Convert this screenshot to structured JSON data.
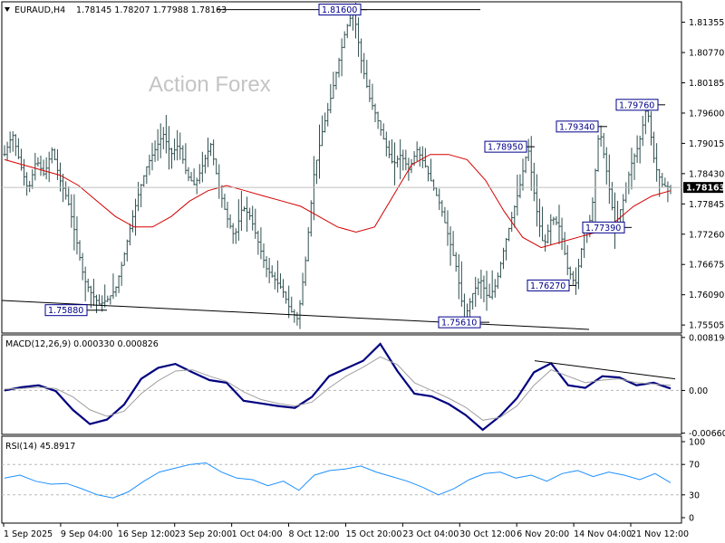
{
  "header": {
    "symbol": "EURAUD,H4",
    "ohlc": "1.78145 1.78207 1.77988 1.78163",
    "watermark": "Action Forex"
  },
  "colors": {
    "bar": "#2f4f4f",
    "ma": "#d40000",
    "macd": "#000080",
    "signal": "#a0a0a0",
    "rsi": "#1e90ff",
    "last_tag": "#000000",
    "label_border": "#00008b"
  },
  "chart_data": [
    {
      "type": "ohlc",
      "panel": "price",
      "ylim": [
        1.7535,
        1.8175
      ],
      "yticks": [
        "1.81355",
        "1.80770",
        "1.80185",
        "1.79600",
        "1.79015",
        "1.78430",
        "1.77845",
        "1.77260",
        "1.76675",
        "1.76090",
        "1.75505"
      ],
      "last_price": "1.78163",
      "annotations": [
        {
          "text": "1.81600",
          "value": 1.816
        },
        {
          "text": "1.75880",
          "value": 1.7588
        },
        {
          "text": "1.75610",
          "value": 1.7561
        },
        {
          "text": "1.78950",
          "value": 1.7895
        },
        {
          "text": "1.79340",
          "value": 1.7934
        },
        {
          "text": "1.79760",
          "value": 1.7976
        },
        {
          "text": "1.77390",
          "value": 1.7739
        },
        {
          "text": "1.76270",
          "value": 1.7627
        }
      ],
      "series": [
        {
          "kind": "price_path",
          "values": [
            1.788,
            1.792,
            1.786,
            1.781,
            1.787,
            1.784,
            1.789,
            1.783,
            1.779,
            1.772,
            1.764,
            1.761,
            1.759,
            1.76,
            1.762,
            1.768,
            1.775,
            1.781,
            1.786,
            1.789,
            1.792,
            1.788,
            1.79,
            1.784,
            1.782,
            1.786,
            1.79,
            1.782,
            1.776,
            1.772,
            1.778,
            1.776,
            1.771,
            1.766,
            1.764,
            1.762,
            1.758,
            1.7561,
            1.768,
            1.784,
            1.792,
            1.798,
            1.805,
            1.812,
            1.816,
            1.806,
            1.799,
            1.795,
            1.79,
            1.786,
            1.788,
            1.785,
            1.789,
            1.786,
            1.782,
            1.778,
            1.772,
            1.766,
            1.7561,
            1.761,
            1.764,
            1.76,
            1.763,
            1.77,
            1.776,
            1.782,
            1.7895,
            1.778,
            1.77,
            1.776,
            1.774,
            1.766,
            1.7627,
            1.772,
            1.776,
            1.7934,
            1.784,
            1.7739,
            1.779,
            1.786,
            1.79,
            1.7976,
            1.786,
            1.782,
            1.7816
          ]
        },
        {
          "kind": "moving_average",
          "values": [
            1.787,
            1.786,
            1.785,
            1.784,
            1.782,
            1.779,
            1.776,
            1.774,
            1.774,
            1.776,
            1.779,
            1.781,
            1.782,
            1.781,
            1.78,
            1.779,
            1.778,
            1.776,
            1.774,
            1.773,
            1.774,
            1.78,
            1.786,
            1.788,
            1.788,
            1.787,
            1.783,
            1.777,
            1.772,
            1.77,
            1.771,
            1.772,
            1.773,
            1.775,
            1.778,
            1.78,
            1.781
          ]
        }
      ]
    },
    {
      "type": "line",
      "panel": "macd",
      "title": "MACD(12,26,9) 0.000330 0.000826",
      "ylim": [
        -0.0068,
        0.0086
      ],
      "yticks": [
        "0.008194",
        "0.00",
        "-0.006604"
      ],
      "series": [
        {
          "name": "MACD",
          "values": [
            0.0,
            0.0005,
            0.0008,
            -0.0001,
            -0.003,
            -0.0052,
            -0.0045,
            -0.0022,
            0.0018,
            0.0035,
            0.0041,
            0.0028,
            0.0016,
            0.0012,
            -0.0016,
            -0.002,
            -0.0024,
            -0.0027,
            -0.001,
            0.0022,
            0.0034,
            0.0046,
            0.0072,
            0.003,
            -0.0005,
            -0.0009,
            -0.0021,
            -0.0038,
            -0.0061,
            -0.004,
            -0.0012,
            0.0028,
            0.0042,
            0.0008,
            0.0004,
            0.0022,
            0.002,
            0.0008,
            0.0012,
            0.0003
          ]
        },
        {
          "name": "Signal",
          "values": [
            0.0002,
            0.0003,
            0.0005,
            0.0003,
            -0.001,
            -0.003,
            -0.004,
            -0.0032,
            -0.0005,
            0.0015,
            0.003,
            0.0032,
            0.0022,
            0.0014,
            -0.0002,
            -0.0014,
            -0.002,
            -0.0024,
            -0.0018,
            0.0004,
            0.0022,
            0.0036,
            0.0052,
            0.004,
            0.0012,
            0.0,
            -0.0012,
            -0.0026,
            -0.0046,
            -0.0042,
            -0.0024,
            0.0008,
            0.0032,
            0.0022,
            0.0012,
            0.0016,
            0.0018,
            0.0012,
            0.001,
            0.0008
          ]
        }
      ]
    },
    {
      "type": "line",
      "panel": "rsi",
      "title": "RSI(14) 45.8917",
      "ylim": [
        0,
        100
      ],
      "yticks": [
        "100",
        "70",
        "30",
        "0"
      ],
      "series": [
        {
          "name": "RSI",
          "values": [
            52,
            56,
            48,
            44,
            45,
            38,
            30,
            26,
            34,
            48,
            60,
            65,
            70,
            72,
            60,
            52,
            50,
            42,
            48,
            36,
            56,
            62,
            64,
            68,
            60,
            54,
            48,
            40,
            30,
            38,
            50,
            58,
            60,
            52,
            56,
            48,
            58,
            62,
            54,
            60,
            56,
            50,
            58,
            46
          ]
        }
      ]
    },
    {
      "type": "axis",
      "xticks": [
        "1 Sep 2025",
        "9 Sep 04:00",
        "16 Sep 12:00",
        "23 Sep 20:00",
        "1 Oct 04:00",
        "8 Oct 12:00",
        "15 Oct 20:00",
        "23 Oct 04:00",
        "30 Oct 12:00",
        "6 Nov 20:00",
        "14 Nov 04:00",
        "21 Nov 12:00"
      ]
    }
  ]
}
